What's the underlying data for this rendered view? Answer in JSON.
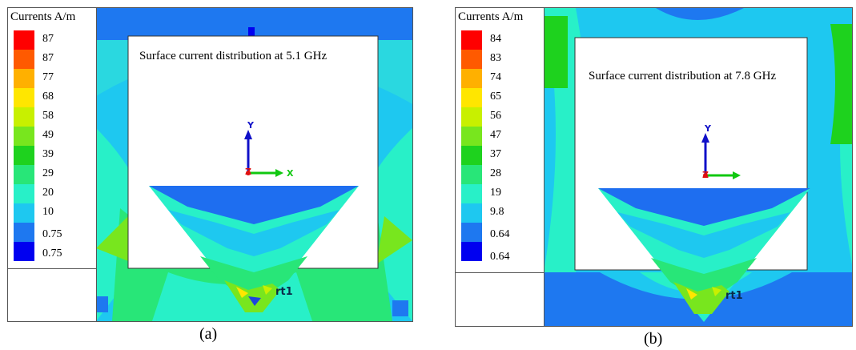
{
  "colors": {
    "scale": [
      "#ff0000",
      "#ff5a00",
      "#ffb000",
      "#ffe600",
      "#c8f000",
      "#78e61e",
      "#1ed21e",
      "#28e678",
      "#28f0c8",
      "#1ec8f0",
      "#1e78f0",
      "#1e46dc",
      "#0000f0"
    ],
    "panel_background": [
      "#1ec8f0",
      "#1e78f0"
    ],
    "plate": "#ffffff",
    "antenna_top": "#1e6ef0",
    "axis_y": "#1010c8",
    "axis_x": "#10c810",
    "axis_z": "#e01010"
  },
  "panels": [
    {
      "id": "a",
      "legend": {
        "title": "Currents A/m",
        "ticks": [
          "87",
          "87",
          "77",
          "68",
          "58",
          "49",
          "39",
          "29",
          "20",
          "10",
          "0.75",
          "0.75"
        ]
      },
      "annotation": "Surface current distribution at 5.1 GHz",
      "axes": {
        "y": "Y",
        "x": "X",
        "z": "Z"
      },
      "port_label": "rt1",
      "caption": "(a)"
    },
    {
      "id": "b",
      "legend": {
        "title": "Currents A/m",
        "ticks": [
          "84",
          "83",
          "74",
          "65",
          "56",
          "47",
          "37",
          "28",
          "19",
          "9.8",
          "0.64",
          "0.64"
        ]
      },
      "annotation": "Surface current distribution at 7.8 GHz",
      "axes": {
        "y": "Y",
        "x": "",
        "z": "Z"
      },
      "port_label": "rt1",
      "caption": "(b)"
    }
  ]
}
